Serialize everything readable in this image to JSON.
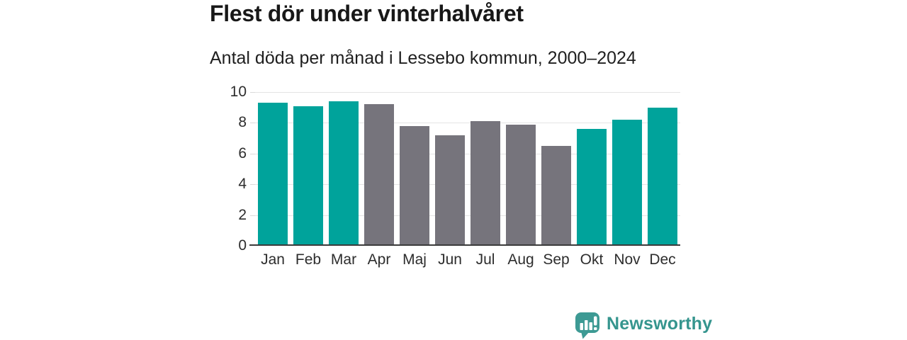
{
  "title": "Flest dör under vinterhalvåret",
  "subtitle": "Antal döda per månad i Lessebo kommun, 2000–2024",
  "branding": {
    "logo_text": "Newsworthy",
    "logo_icon": "speech-bubble-with-bar-chart-and-exclamation",
    "logo_icon_color": "#3d9a94",
    "logo_text_color": "#35958e"
  },
  "colors": {
    "winter_bar": "#00a39b",
    "summer_bar": "#76747c",
    "gridline": "#e4e4e4",
    "axis_line": "#3b3b3b",
    "text": "#1f1f1f"
  },
  "chart_data": {
    "type": "bar",
    "title": "Flest dör under vinterhalvåret",
    "subtitle": "Antal döda per månad i Lessebo kommun, 2000–2024",
    "categories": [
      "Jan",
      "Feb",
      "Mar",
      "Apr",
      "Maj",
      "Jun",
      "Jul",
      "Aug",
      "Sep",
      "Okt",
      "Nov",
      "Dec"
    ],
    "values": [
      9.3,
      9.1,
      9.4,
      9.2,
      7.8,
      7.2,
      8.1,
      7.9,
      6.5,
      7.6,
      8.2,
      9.0
    ],
    "bar_colors": [
      "winter",
      "winter",
      "winter",
      "summer",
      "summer",
      "summer",
      "summer",
      "summer",
      "summer",
      "winter",
      "winter",
      "winter"
    ],
    "bar_palette": {
      "winter": "#00a39b",
      "summer": "#76747c"
    },
    "xlabel": "",
    "ylabel": "",
    "ylim": [
      0,
      10
    ],
    "yticks": [
      0,
      2,
      4,
      6,
      8,
      10
    ],
    "grid": true,
    "legend": false
  }
}
